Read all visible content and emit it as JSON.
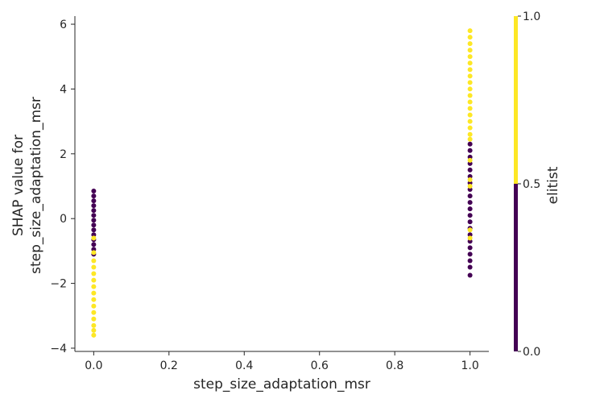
{
  "chart_data": {
    "type": "scatter",
    "title": "",
    "xlabel": "step_size_adaptation_msr",
    "ylabel_line1": "SHAP value for",
    "ylabel_line2": "step_size_adaptation_msr",
    "xlim": [
      -0.05,
      1.05
    ],
    "ylim": [
      -4.1,
      6.25
    ],
    "x_ticks": [
      0.0,
      0.2,
      0.4,
      0.6,
      0.8,
      1.0
    ],
    "x_tick_labels": [
      "0.0",
      "0.2",
      "0.4",
      "0.6",
      "0.8",
      "1.0"
    ],
    "y_ticks": [
      -4,
      -2,
      0,
      2,
      4,
      6
    ],
    "y_tick_labels": [
      "−4",
      "−2",
      "0",
      "2",
      "4",
      "6"
    ],
    "grid": false,
    "colorbar": {
      "label": "elitist",
      "ticks": [
        0.0,
        0.5,
        1.0
      ],
      "tick_labels": [
        "0.0",
        "0.5",
        "1.0"
      ],
      "low_color": "#440154",
      "high_color": "#fde725"
    },
    "series": [
      {
        "color_value": 0,
        "color": "#440154",
        "points": [
          {
            "x": 0,
            "y": 0.85
          },
          {
            "x": 0,
            "y": 0.7
          },
          {
            "x": 0,
            "y": 0.55
          },
          {
            "x": 0,
            "y": 0.4
          },
          {
            "x": 0,
            "y": 0.25
          },
          {
            "x": 0,
            "y": 0.1
          },
          {
            "x": 0,
            "y": -0.05
          },
          {
            "x": 0,
            "y": -0.2
          },
          {
            "x": 0,
            "y": -0.35
          },
          {
            "x": 0,
            "y": -0.5
          },
          {
            "x": 0,
            "y": -0.65
          },
          {
            "x": 0,
            "y": -0.8
          },
          {
            "x": 0,
            "y": -0.95
          },
          {
            "x": 0,
            "y": -1.1
          },
          {
            "x": 1,
            "y": 2.3
          },
          {
            "x": 1,
            "y": 2.1
          },
          {
            "x": 1,
            "y": 1.9
          },
          {
            "x": 1,
            "y": 1.7
          },
          {
            "x": 1,
            "y": 1.5
          },
          {
            "x": 1,
            "y": 1.3
          },
          {
            "x": 1,
            "y": 1.1
          },
          {
            "x": 1,
            "y": 0.9
          },
          {
            "x": 1,
            "y": 0.7
          },
          {
            "x": 1,
            "y": 0.5
          },
          {
            "x": 1,
            "y": 0.3
          },
          {
            "x": 1,
            "y": 0.1
          },
          {
            "x": 1,
            "y": -0.1
          },
          {
            "x": 1,
            "y": -0.3
          },
          {
            "x": 1,
            "y": -0.5
          },
          {
            "x": 1,
            "y": -0.7
          },
          {
            "x": 1,
            "y": -0.9
          },
          {
            "x": 1,
            "y": -1.1
          },
          {
            "x": 1,
            "y": -1.3
          },
          {
            "x": 1,
            "y": -1.5
          },
          {
            "x": 1,
            "y": -1.75
          }
        ]
      },
      {
        "color_value": 1,
        "color": "#fde725",
        "points": [
          {
            "x": 0,
            "y": -0.6
          },
          {
            "x": 0,
            "y": -1.05
          },
          {
            "x": 0,
            "y": -1.3
          },
          {
            "x": 0,
            "y": -1.5
          },
          {
            "x": 0,
            "y": -1.7
          },
          {
            "x": 0,
            "y": -1.9
          },
          {
            "x": 0,
            "y": -2.1
          },
          {
            "x": 0,
            "y": -2.3
          },
          {
            "x": 0,
            "y": -2.5
          },
          {
            "x": 0,
            "y": -2.7
          },
          {
            "x": 0,
            "y": -2.9
          },
          {
            "x": 0,
            "y": -3.1
          },
          {
            "x": 0,
            "y": -3.3
          },
          {
            "x": 0,
            "y": -3.45
          },
          {
            "x": 0,
            "y": -3.6
          },
          {
            "x": 1,
            "y": 5.8
          },
          {
            "x": 1,
            "y": 5.6
          },
          {
            "x": 1,
            "y": 5.4
          },
          {
            "x": 1,
            "y": 5.2
          },
          {
            "x": 1,
            "y": 5.0
          },
          {
            "x": 1,
            "y": 4.8
          },
          {
            "x": 1,
            "y": 4.6
          },
          {
            "x": 1,
            "y": 4.4
          },
          {
            "x": 1,
            "y": 4.2
          },
          {
            "x": 1,
            "y": 4.0
          },
          {
            "x": 1,
            "y": 3.8
          },
          {
            "x": 1,
            "y": 3.6
          },
          {
            "x": 1,
            "y": 3.4
          },
          {
            "x": 1,
            "y": 3.2
          },
          {
            "x": 1,
            "y": 3.0
          },
          {
            "x": 1,
            "y": 2.8
          },
          {
            "x": 1,
            "y": 2.6
          },
          {
            "x": 1,
            "y": 2.45
          },
          {
            "x": 1,
            "y": 1.8
          },
          {
            "x": 1,
            "y": 1.2
          },
          {
            "x": 1,
            "y": 1.0
          },
          {
            "x": 1,
            "y": -0.35
          },
          {
            "x": 1,
            "y": -0.6
          }
        ]
      }
    ]
  }
}
